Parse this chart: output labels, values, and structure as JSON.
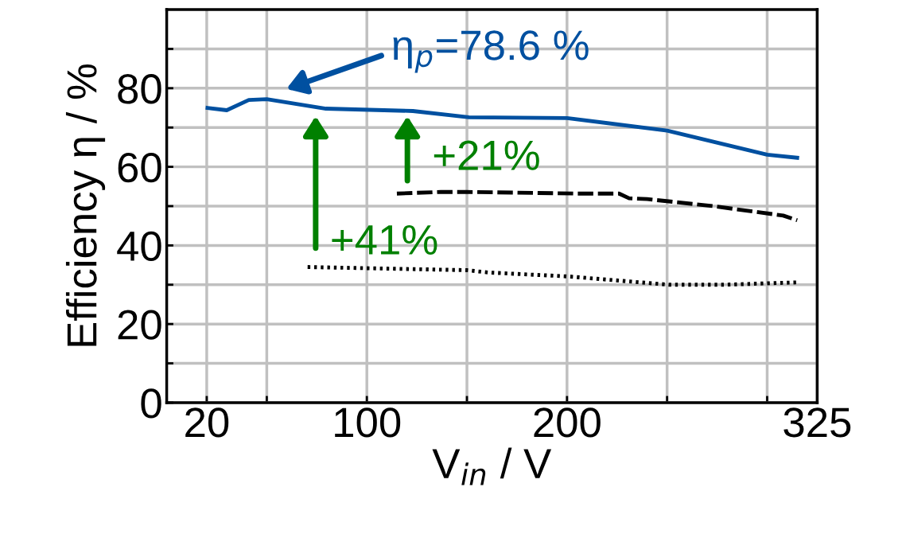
{
  "chart_data": {
    "type": "line",
    "xlabel": "V$_{in}$ / V",
    "ylabel": "Efficiency η / %",
    "xlim": [
      0,
      325
    ],
    "xticks": [
      20,
      {
        "value": 50,
        "label": null
      },
      100,
      {
        "value": 150,
        "label": null
      },
      200,
      {
        "value": 250,
        "label": null
      },
      {
        "value": 300,
        "label": null
      },
      325
    ],
    "ylim": [
      0,
      100
    ],
    "yticks": [
      0,
      {
        "value": 10,
        "label": null
      },
      20,
      {
        "value": 30,
        "label": null
      },
      40,
      {
        "value": 50,
        "label": null
      },
      60,
      {
        "value": 70,
        "label": null
      },
      80,
      {
        "value": 90,
        "label": null
      }
    ],
    "grid": true,
    "legend": false,
    "marker": "none",
    "series": [
      {
        "color": "#0050a0",
        "line_style": "solid",
        "x": [
          20.4,
          30,
          41,
          50,
          79.6,
          123,
          151,
          200,
          250,
          300,
          315
        ],
        "values": [
          75.0,
          74.4,
          77.0,
          77.2,
          74.8,
          74.2,
          72.6,
          72.4,
          69.2,
          63.1,
          62.3
        ]
      },
      {
        "color": "#000000",
        "line_style": "dashed",
        "x": [
          115,
          137,
          150,
          205,
          226,
          231,
          240,
          273,
          308,
          315
        ],
        "values": [
          53.2,
          53.6,
          53.6,
          53.2,
          53.2,
          52.0,
          51.8,
          50.0,
          47.6,
          46.4
        ]
      },
      {
        "color": "#000000",
        "line_style": "dotted",
        "x": [
          70.4,
          150,
          161,
          201,
          251,
          278,
          315
        ],
        "values": [
          34.5,
          33.7,
          33.1,
          32.1,
          30.0,
          30.0,
          30.6
        ]
      }
    ],
    "annotations": [
      "η$_{p}$=78.6 %",
      "+41%",
      "+21%"
    ]
  }
}
